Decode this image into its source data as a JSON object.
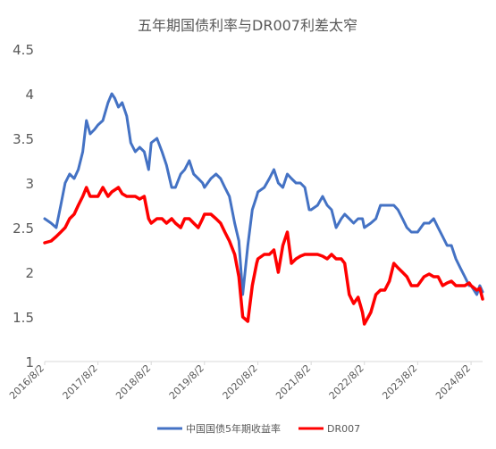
{
  "chart_data": {
    "type": "line",
    "title": "五年期国债利率与DR007利差太窄",
    "x_ticks": [
      "2016/8/2",
      "2017/8/2",
      "2018/8/2",
      "2019/8/2",
      "2020/8/2",
      "2021/8/2",
      "2022/8/2",
      "2023/8/2",
      "2024/8/2"
    ],
    "y_ticks": [
      "1",
      "1.5",
      "2",
      "2.5",
      "3",
      "3.5",
      "4",
      "4.5"
    ],
    "ylim": [
      1,
      4.5
    ],
    "xlim": [
      "2016-08-02",
      "2024-10-20"
    ],
    "grid": false,
    "legend_position": "bottom",
    "series": [
      {
        "name": "中国国债5年期收益率",
        "color": "#4472C4",
        "points": [
          [
            "2016-08-02",
            2.6
          ],
          [
            "2016-09-15",
            2.55
          ],
          [
            "2016-10-20",
            2.5
          ],
          [
            "2016-11-20",
            2.75
          ],
          [
            "2016-12-20",
            3.0
          ],
          [
            "2017-01-20",
            3.1
          ],
          [
            "2017-02-20",
            3.05
          ],
          [
            "2017-03-20",
            3.15
          ],
          [
            "2017-04-20",
            3.35
          ],
          [
            "2017-05-15",
            3.7
          ],
          [
            "2017-06-10",
            3.55
          ],
          [
            "2017-07-10",
            3.6
          ],
          [
            "2017-08-02",
            3.65
          ],
          [
            "2017-09-05",
            3.7
          ],
          [
            "2017-10-10",
            3.9
          ],
          [
            "2017-11-05",
            4.0
          ],
          [
            "2017-11-25",
            3.95
          ],
          [
            "2017-12-20",
            3.85
          ],
          [
            "2018-01-15",
            3.9
          ],
          [
            "2018-02-15",
            3.75
          ],
          [
            "2018-03-15",
            3.45
          ],
          [
            "2018-04-15",
            3.35
          ],
          [
            "2018-05-15",
            3.4
          ],
          [
            "2018-06-15",
            3.35
          ],
          [
            "2018-07-15",
            3.15
          ],
          [
            "2018-08-02",
            3.45
          ],
          [
            "2018-09-10",
            3.5
          ],
          [
            "2018-10-15",
            3.35
          ],
          [
            "2018-11-15",
            3.2
          ],
          [
            "2018-12-20",
            2.95
          ],
          [
            "2019-01-15",
            2.95
          ],
          [
            "2019-02-20",
            3.1
          ],
          [
            "2019-03-20",
            3.15
          ],
          [
            "2019-04-20",
            3.25
          ],
          [
            "2019-05-20",
            3.1
          ],
          [
            "2019-06-20",
            3.05
          ],
          [
            "2019-07-20",
            3.0
          ],
          [
            "2019-08-02",
            2.95
          ],
          [
            "2019-09-15",
            3.05
          ],
          [
            "2019-10-20",
            3.1
          ],
          [
            "2019-11-20",
            3.05
          ],
          [
            "2019-12-20",
            2.95
          ],
          [
            "2020-01-20",
            2.85
          ],
          [
            "2020-02-25",
            2.55
          ],
          [
            "2020-03-25",
            2.35
          ],
          [
            "2020-04-20",
            1.75
          ],
          [
            "2020-05-25",
            2.3
          ],
          [
            "2020-06-25",
            2.7
          ],
          [
            "2020-07-25",
            2.85
          ],
          [
            "2020-08-02",
            2.9
          ],
          [
            "2020-09-15",
            2.95
          ],
          [
            "2020-10-20",
            3.05
          ],
          [
            "2020-11-20",
            3.15
          ],
          [
            "2020-12-20",
            3.0
          ],
          [
            "2021-01-20",
            2.95
          ],
          [
            "2021-02-20",
            3.1
          ],
          [
            "2021-03-20",
            3.05
          ],
          [
            "2021-04-20",
            3.0
          ],
          [
            "2021-05-20",
            3.0
          ],
          [
            "2021-06-20",
            2.95
          ],
          [
            "2021-07-20",
            2.7
          ],
          [
            "2021-08-02",
            2.7
          ],
          [
            "2021-09-15",
            2.75
          ],
          [
            "2021-10-20",
            2.85
          ],
          [
            "2021-11-20",
            2.75
          ],
          [
            "2021-12-20",
            2.7
          ],
          [
            "2022-01-20",
            2.5
          ],
          [
            "2022-02-25",
            2.6
          ],
          [
            "2022-03-20",
            2.65
          ],
          [
            "2022-04-20",
            2.6
          ],
          [
            "2022-05-20",
            2.55
          ],
          [
            "2022-06-20",
            2.6
          ],
          [
            "2022-07-20",
            2.6
          ],
          [
            "2022-08-02",
            2.5
          ],
          [
            "2022-09-15",
            2.55
          ],
          [
            "2022-10-20",
            2.6
          ],
          [
            "2022-11-20",
            2.75
          ],
          [
            "2022-12-20",
            2.75
          ],
          [
            "2023-01-20",
            2.75
          ],
          [
            "2023-02-20",
            2.75
          ],
          [
            "2023-03-20",
            2.7
          ],
          [
            "2023-04-20",
            2.6
          ],
          [
            "2023-05-20",
            2.5
          ],
          [
            "2023-06-20",
            2.45
          ],
          [
            "2023-07-20",
            2.45
          ],
          [
            "2023-08-02",
            2.45
          ],
          [
            "2023-09-15",
            2.55
          ],
          [
            "2023-10-20",
            2.55
          ],
          [
            "2023-11-20",
            2.6
          ],
          [
            "2023-12-20",
            2.5
          ],
          [
            "2024-01-20",
            2.4
          ],
          [
            "2024-02-20",
            2.3
          ],
          [
            "2024-03-20",
            2.3
          ],
          [
            "2024-04-20",
            2.15
          ],
          [
            "2024-05-20",
            2.05
          ],
          [
            "2024-06-20",
            1.95
          ],
          [
            "2024-07-20",
            1.85
          ],
          [
            "2024-08-02",
            1.85
          ],
          [
            "2024-09-10",
            1.75
          ],
          [
            "2024-10-01",
            1.85
          ],
          [
            "2024-10-20",
            1.78
          ]
        ]
      },
      {
        "name": "DR007",
        "color": "#FF0000",
        "points": [
          [
            "2016-08-02",
            2.33
          ],
          [
            "2016-09-15",
            2.35
          ],
          [
            "2016-10-20",
            2.4
          ],
          [
            "2016-11-20",
            2.45
          ],
          [
            "2016-12-20",
            2.5
          ],
          [
            "2017-01-20",
            2.6
          ],
          [
            "2017-02-20",
            2.65
          ],
          [
            "2017-03-20",
            2.75
          ],
          [
            "2017-04-20",
            2.85
          ],
          [
            "2017-05-15",
            2.95
          ],
          [
            "2017-06-10",
            2.85
          ],
          [
            "2017-07-10",
            2.85
          ],
          [
            "2017-08-02",
            2.85
          ],
          [
            "2017-09-05",
            2.95
          ],
          [
            "2017-10-10",
            2.85
          ],
          [
            "2017-11-05",
            2.9
          ],
          [
            "2017-12-20",
            2.95
          ],
          [
            "2018-01-15",
            2.88
          ],
          [
            "2018-02-15",
            2.85
          ],
          [
            "2018-03-15",
            2.85
          ],
          [
            "2018-04-15",
            2.85
          ],
          [
            "2018-05-15",
            2.82
          ],
          [
            "2018-06-15",
            2.85
          ],
          [
            "2018-07-15",
            2.6
          ],
          [
            "2018-08-02",
            2.55
          ],
          [
            "2018-09-10",
            2.6
          ],
          [
            "2018-10-15",
            2.6
          ],
          [
            "2018-11-15",
            2.55
          ],
          [
            "2018-12-20",
            2.6
          ],
          [
            "2019-01-15",
            2.55
          ],
          [
            "2019-02-20",
            2.5
          ],
          [
            "2019-03-20",
            2.6
          ],
          [
            "2019-04-20",
            2.6
          ],
          [
            "2019-05-20",
            2.55
          ],
          [
            "2019-06-20",
            2.5
          ],
          [
            "2019-07-20",
            2.6
          ],
          [
            "2019-08-02",
            2.65
          ],
          [
            "2019-09-15",
            2.65
          ],
          [
            "2019-10-20",
            2.6
          ],
          [
            "2019-11-20",
            2.55
          ],
          [
            "2019-12-20",
            2.45
          ],
          [
            "2020-01-20",
            2.35
          ],
          [
            "2020-02-25",
            2.2
          ],
          [
            "2020-03-25",
            1.95
          ],
          [
            "2020-04-20",
            1.5
          ],
          [
            "2020-05-25",
            1.45
          ],
          [
            "2020-06-25",
            1.85
          ],
          [
            "2020-07-25",
            2.1
          ],
          [
            "2020-08-02",
            2.15
          ],
          [
            "2020-09-15",
            2.2
          ],
          [
            "2020-10-20",
            2.2
          ],
          [
            "2020-11-20",
            2.25
          ],
          [
            "2020-12-20",
            2.0
          ],
          [
            "2021-01-20",
            2.3
          ],
          [
            "2021-02-20",
            2.45
          ],
          [
            "2021-03-20",
            2.1
          ],
          [
            "2021-04-20",
            2.15
          ],
          [
            "2021-05-20",
            2.18
          ],
          [
            "2021-06-20",
            2.2
          ],
          [
            "2021-07-20",
            2.2
          ],
          [
            "2021-08-02",
            2.2
          ],
          [
            "2021-09-15",
            2.2
          ],
          [
            "2021-10-20",
            2.18
          ],
          [
            "2021-11-20",
            2.15
          ],
          [
            "2021-12-20",
            2.2
          ],
          [
            "2022-01-20",
            2.15
          ],
          [
            "2022-02-25",
            2.15
          ],
          [
            "2022-03-20",
            2.1
          ],
          [
            "2022-04-20",
            1.75
          ],
          [
            "2022-05-20",
            1.65
          ],
          [
            "2022-06-20",
            1.72
          ],
          [
            "2022-07-20",
            1.55
          ],
          [
            "2022-08-02",
            1.42
          ],
          [
            "2022-09-15",
            1.55
          ],
          [
            "2022-10-20",
            1.75
          ],
          [
            "2022-11-20",
            1.8
          ],
          [
            "2022-12-20",
            1.8
          ],
          [
            "2023-01-20",
            1.9
          ],
          [
            "2023-02-20",
            2.1
          ],
          [
            "2023-03-20",
            2.05
          ],
          [
            "2023-04-20",
            2.0
          ],
          [
            "2023-05-20",
            1.95
          ],
          [
            "2023-06-20",
            1.85
          ],
          [
            "2023-07-20",
            1.85
          ],
          [
            "2023-08-02",
            1.85
          ],
          [
            "2023-09-15",
            1.95
          ],
          [
            "2023-10-20",
            1.98
          ],
          [
            "2023-11-20",
            1.95
          ],
          [
            "2023-12-20",
            1.95
          ],
          [
            "2024-01-20",
            1.85
          ],
          [
            "2024-02-20",
            1.88
          ],
          [
            "2024-03-20",
            1.9
          ],
          [
            "2024-04-20",
            1.85
          ],
          [
            "2024-05-20",
            1.85
          ],
          [
            "2024-06-20",
            1.85
          ],
          [
            "2024-07-20",
            1.88
          ],
          [
            "2024-08-02",
            1.85
          ],
          [
            "2024-09-10",
            1.8
          ],
          [
            "2024-10-01",
            1.82
          ],
          [
            "2024-10-20",
            1.7
          ]
        ]
      }
    ]
  }
}
